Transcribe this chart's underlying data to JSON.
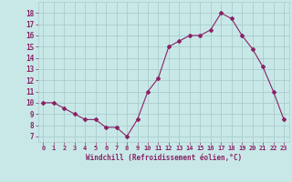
{
  "x": [
    0,
    1,
    2,
    3,
    4,
    5,
    6,
    7,
    8,
    9,
    10,
    11,
    12,
    13,
    14,
    15,
    16,
    17,
    18,
    19,
    20,
    21,
    22,
    23
  ],
  "y": [
    10.0,
    10.0,
    9.5,
    9.0,
    8.5,
    8.5,
    7.8,
    7.8,
    7.0,
    8.5,
    11.0,
    12.2,
    15.0,
    15.5,
    16.0,
    16.0,
    16.5,
    18.0,
    17.5,
    16.0,
    14.8,
    13.2,
    11.0,
    8.5
  ],
  "line_color": "#882266",
  "marker": "D",
  "marker_size": 2,
  "bg_color": "#c8e8e8",
  "grid_color": "#aacccc",
  "xlabel": "Windchill (Refroidissement éolien,°C)",
  "xlabel_color": "#882266",
  "tick_color": "#882266",
  "ylim": [
    6.5,
    19.0
  ],
  "xlim": [
    -0.5,
    23.5
  ],
  "yticks": [
    7,
    8,
    9,
    10,
    11,
    12,
    13,
    14,
    15,
    16,
    17,
    18
  ],
  "xticks": [
    0,
    1,
    2,
    3,
    4,
    5,
    6,
    7,
    8,
    9,
    10,
    11,
    12,
    13,
    14,
    15,
    16,
    17,
    18,
    19,
    20,
    21,
    22,
    23
  ]
}
